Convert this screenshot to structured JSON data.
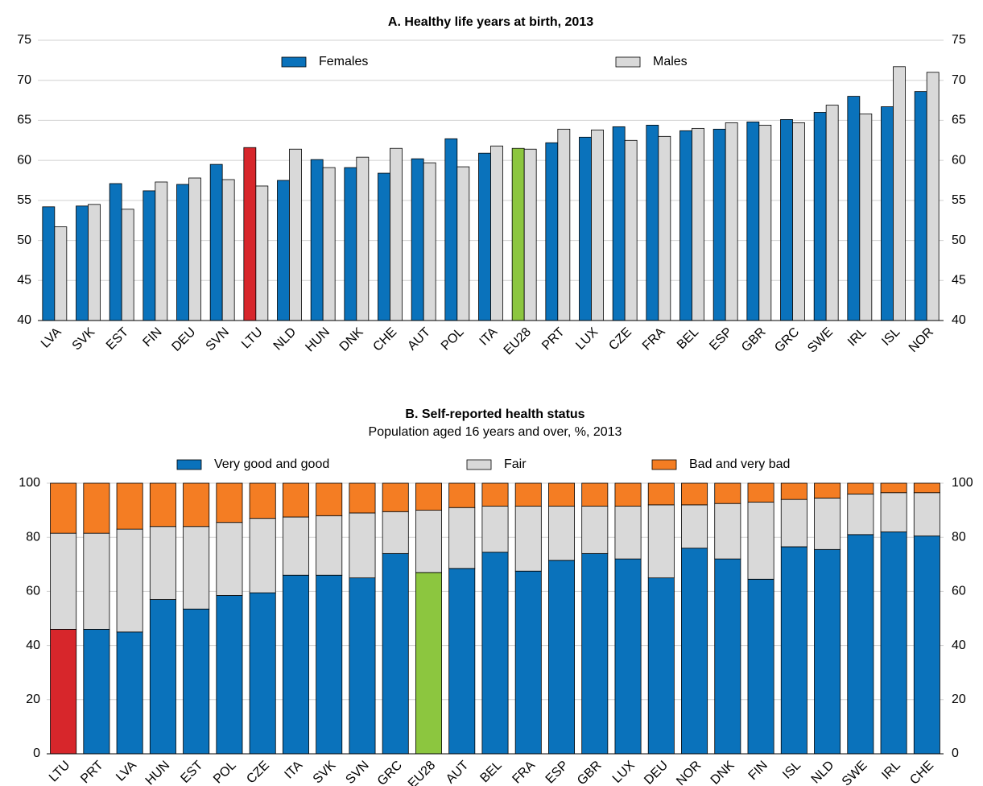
{
  "chart_data": [
    {
      "type": "bar",
      "title": "A. Healthy life years at birth, 2013",
      "categories": [
        "LVA",
        "SVK",
        "EST",
        "FIN",
        "DEU",
        "SVN",
        "LTU",
        "NLD",
        "HUN",
        "DNK",
        "CHE",
        "AUT",
        "POL",
        "ITA",
        "EU28",
        "PRT",
        "LUX",
        "CZE",
        "FRA",
        "BEL",
        "ESP",
        "GBR",
        "GRC",
        "SWE",
        "IRL",
        "ISL",
        "NOR"
      ],
      "series": [
        {
          "name": "Females",
          "color": "#0a72bb",
          "values": [
            54.2,
            54.3,
            57.1,
            56.2,
            57.0,
            59.5,
            61.6,
            57.5,
            60.1,
            59.1,
            58.4,
            60.2,
            62.7,
            60.9,
            61.5,
            62.2,
            62.9,
            64.2,
            64.4,
            63.7,
            63.9,
            64.8,
            65.1,
            66.0,
            68.0,
            66.7,
            68.6
          ]
        },
        {
          "name": "Males",
          "color": "#d9d9d9",
          "values": [
            51.7,
            54.5,
            53.9,
            57.3,
            57.8,
            57.6,
            56.8,
            61.4,
            59.1,
            60.4,
            61.5,
            59.7,
            59.2,
            61.8,
            61.4,
            63.9,
            63.8,
            62.5,
            63.0,
            64.0,
            64.7,
            64.4,
            64.7,
            66.9,
            65.8,
            71.7,
            71.0
          ]
        }
      ],
      "highlight": {
        "LTU": "#d7262b",
        "EU28": "#8cc63f"
      },
      "ylim": [
        40,
        75
      ],
      "yticks": [
        40,
        45,
        50,
        55,
        60,
        65,
        70,
        75
      ],
      "grid": true,
      "stacked": false
    },
    {
      "type": "bar",
      "title": "B. Self-reported health status",
      "subtitle": "Population aged 16 years and over, %, 2013",
      "categories": [
        "LTU",
        "PRT",
        "LVA",
        "HUN",
        "EST",
        "POL",
        "CZE",
        "ITA",
        "SVK",
        "SVN",
        "GRC",
        "EU28",
        "AUT",
        "BEL",
        "FRA",
        "ESP",
        "GBR",
        "LUX",
        "DEU",
        "NOR",
        "DNK",
        "FIN",
        "ISL",
        "NLD",
        "SWE",
        "IRL",
        "CHE"
      ],
      "series": [
        {
          "name": "Very good and good",
          "color": "#0a72bb",
          "values": [
            46,
            46,
            45,
            57,
            53.5,
            58.5,
            59.5,
            66,
            66,
            65,
            74,
            67,
            68.5,
            74.5,
            67.5,
            71.5,
            74,
            72,
            65,
            76,
            72,
            64.5,
            76.5,
            75.5,
            81,
            82,
            80.5
          ]
        },
        {
          "name": "Fair",
          "color": "#d9d9d9",
          "values": [
            35.5,
            35.5,
            38,
            27,
            30.5,
            27,
            27.5,
            21.5,
            22,
            24,
            15.5,
            23,
            22.5,
            17,
            24,
            20,
            17.5,
            19.5,
            27,
            16,
            20.5,
            28.5,
            17.5,
            19,
            15,
            14.5,
            16
          ]
        },
        {
          "name": "Bad and very bad",
          "color": "#f47d23",
          "values": [
            18.5,
            18.5,
            17,
            16,
            16,
            14.5,
            13,
            12.5,
            12,
            11,
            10.5,
            10,
            9,
            8.5,
            8.5,
            8.5,
            8.5,
            8.5,
            8,
            8,
            7.5,
            7,
            6,
            5.5,
            4,
            3.5,
            3.5
          ]
        }
      ],
      "highlight": {
        "LTU": "#d7262b",
        "EU28": "#8cc63f"
      },
      "ylim": [
        0,
        100
      ],
      "yticks": [
        0,
        20,
        40,
        60,
        80,
        100
      ],
      "grid": true,
      "stacked": true
    }
  ]
}
